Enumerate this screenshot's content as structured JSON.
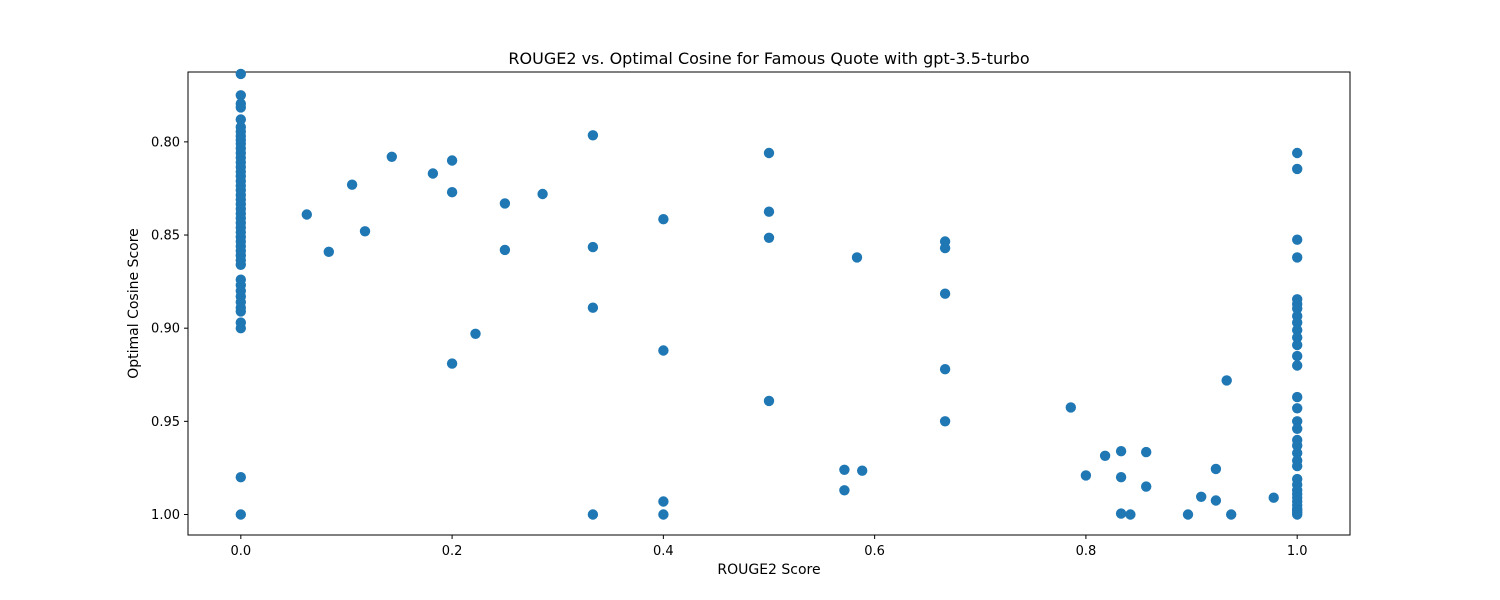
{
  "chart_data": {
    "type": "scatter",
    "title": "ROUGE2 vs. Optimal Cosine for Famous Quote with gpt-3.5-turbo",
    "xlabel": "ROUGE2 Score",
    "ylabel": "Optimal Cosine Score",
    "xlim": [
      -0.05,
      1.05
    ],
    "ylim": [
      1.011,
      0.7625
    ],
    "y_axis_inverted": true,
    "grid": false,
    "marker_color": "#1f77b4",
    "xticks": [
      {
        "value": 0.0,
        "label": "0.0"
      },
      {
        "value": 0.2,
        "label": "0.2"
      },
      {
        "value": 0.4,
        "label": "0.4"
      },
      {
        "value": 0.6,
        "label": "0.6"
      },
      {
        "value": 0.8,
        "label": "0.8"
      },
      {
        "value": 1.0,
        "label": "1.0"
      }
    ],
    "yticks": [
      {
        "value": 0.8,
        "label": "0.80"
      },
      {
        "value": 0.85,
        "label": "0.85"
      },
      {
        "value": 0.9,
        "label": "0.90"
      },
      {
        "value": 0.95,
        "label": "0.95"
      },
      {
        "value": 1.0,
        "label": "1.00"
      }
    ],
    "series": [
      {
        "points": [
          [
            0,
            0.7635
          ],
          [
            0,
            0.775
          ],
          [
            0,
            0.7795
          ],
          [
            0,
            0.7815
          ],
          [
            0,
            0.788
          ],
          [
            0,
            0.792
          ],
          [
            0,
            0.7945
          ],
          [
            0,
            0.797
          ],
          [
            0,
            0.799
          ],
          [
            0,
            0.801
          ],
          [
            0,
            0.8035
          ],
          [
            0,
            0.806
          ],
          [
            0,
            0.8085
          ],
          [
            0,
            0.811
          ],
          [
            0,
            0.8135
          ],
          [
            0,
            0.816
          ],
          [
            0,
            0.8185
          ],
          [
            0,
            0.821
          ],
          [
            0,
            0.8235
          ],
          [
            0,
            0.826
          ],
          [
            0,
            0.8285
          ],
          [
            0,
            0.831
          ],
          [
            0,
            0.8335
          ],
          [
            0,
            0.836
          ],
          [
            0,
            0.8385
          ],
          [
            0,
            0.841
          ],
          [
            0,
            0.8435
          ],
          [
            0,
            0.846
          ],
          [
            0,
            0.8485
          ],
          [
            0,
            0.851
          ],
          [
            0,
            0.8535
          ],
          [
            0,
            0.856
          ],
          [
            0,
            0.8585
          ],
          [
            0,
            0.861
          ],
          [
            0,
            0.8635
          ],
          [
            0,
            0.866
          ],
          [
            0,
            0.874
          ],
          [
            0,
            0.877
          ],
          [
            0,
            0.88
          ],
          [
            0,
            0.883
          ],
          [
            0,
            0.886
          ],
          [
            0,
            0.889
          ],
          [
            0,
            0.891
          ],
          [
            0,
            0.897
          ],
          [
            0,
            0.9
          ],
          [
            0,
            0.98
          ],
          [
            0,
            1.0
          ],
          [
            0.0625,
            0.839
          ],
          [
            0.0833,
            0.859
          ],
          [
            0.1053,
            0.823
          ],
          [
            0.1176,
            0.848
          ],
          [
            0.1429,
            0.808
          ],
          [
            0.1818,
            0.817
          ],
          [
            0.2,
            0.81
          ],
          [
            0.2,
            0.827
          ],
          [
            0.2,
            0.919
          ],
          [
            0.2222,
            0.903
          ],
          [
            0.25,
            0.833
          ],
          [
            0.25,
            0.858
          ],
          [
            0.2857,
            0.828
          ],
          [
            0.3333,
            0.7965
          ],
          [
            0.3333,
            0.8565
          ],
          [
            0.3333,
            0.889
          ],
          [
            0.3333,
            1.0
          ],
          [
            0.4,
            0.8415
          ],
          [
            0.4,
            0.912
          ],
          [
            0.4,
            0.993
          ],
          [
            0.4,
            1.0
          ],
          [
            0.5,
            0.806
          ],
          [
            0.5,
            0.8375
          ],
          [
            0.5,
            0.8515
          ],
          [
            0.5,
            0.939
          ],
          [
            0.5714,
            0.976
          ],
          [
            0.5714,
            0.987
          ],
          [
            0.5882,
            0.9765
          ],
          [
            0.5833,
            0.862
          ],
          [
            0.6667,
            0.8535
          ],
          [
            0.6667,
            0.857
          ],
          [
            0.6667,
            0.8815
          ],
          [
            0.6667,
            0.922
          ],
          [
            0.6667,
            0.95
          ],
          [
            0.7857,
            0.9425
          ],
          [
            0.8,
            0.979
          ],
          [
            0.8182,
            0.9685
          ],
          [
            0.8333,
            0.966
          ],
          [
            0.8333,
            0.98
          ],
          [
            0.8333,
            0.9995
          ],
          [
            0.8421,
            1.0
          ],
          [
            0.8571,
            0.9665
          ],
          [
            0.8571,
            0.985
          ],
          [
            0.8966,
            1.0
          ],
          [
            0.9091,
            0.9905
          ],
          [
            0.9231,
            0.9755
          ],
          [
            0.9231,
            0.9925
          ],
          [
            0.9333,
            0.928
          ],
          [
            0.9375,
            1.0
          ],
          [
            0.9778,
            0.991
          ],
          [
            1,
            0.806
          ],
          [
            1,
            0.8145
          ],
          [
            1,
            0.8525
          ],
          [
            1,
            0.862
          ],
          [
            1,
            0.8845
          ],
          [
            1,
            0.887
          ],
          [
            1,
            0.8895
          ],
          [
            1,
            0.8935
          ],
          [
            1,
            0.897
          ],
          [
            1,
            0.901
          ],
          [
            1,
            0.905
          ],
          [
            1,
            0.909
          ],
          [
            1,
            0.915
          ],
          [
            1,
            0.92
          ],
          [
            1,
            0.937
          ],
          [
            1,
            0.943
          ],
          [
            1,
            0.95
          ],
          [
            1,
            0.954
          ],
          [
            1,
            0.96
          ],
          [
            1,
            0.963
          ],
          [
            1,
            0.967
          ],
          [
            1,
            0.971
          ],
          [
            1,
            0.974
          ],
          [
            1,
            0.981
          ],
          [
            1,
            0.984
          ],
          [
            1,
            0.987
          ],
          [
            1,
            0.989
          ],
          [
            1,
            0.991
          ],
          [
            1,
            0.993
          ],
          [
            1,
            0.995
          ],
          [
            1,
            0.997
          ],
          [
            1,
            0.998
          ],
          [
            1,
            0.999
          ],
          [
            1,
            1.0
          ]
        ]
      }
    ]
  }
}
